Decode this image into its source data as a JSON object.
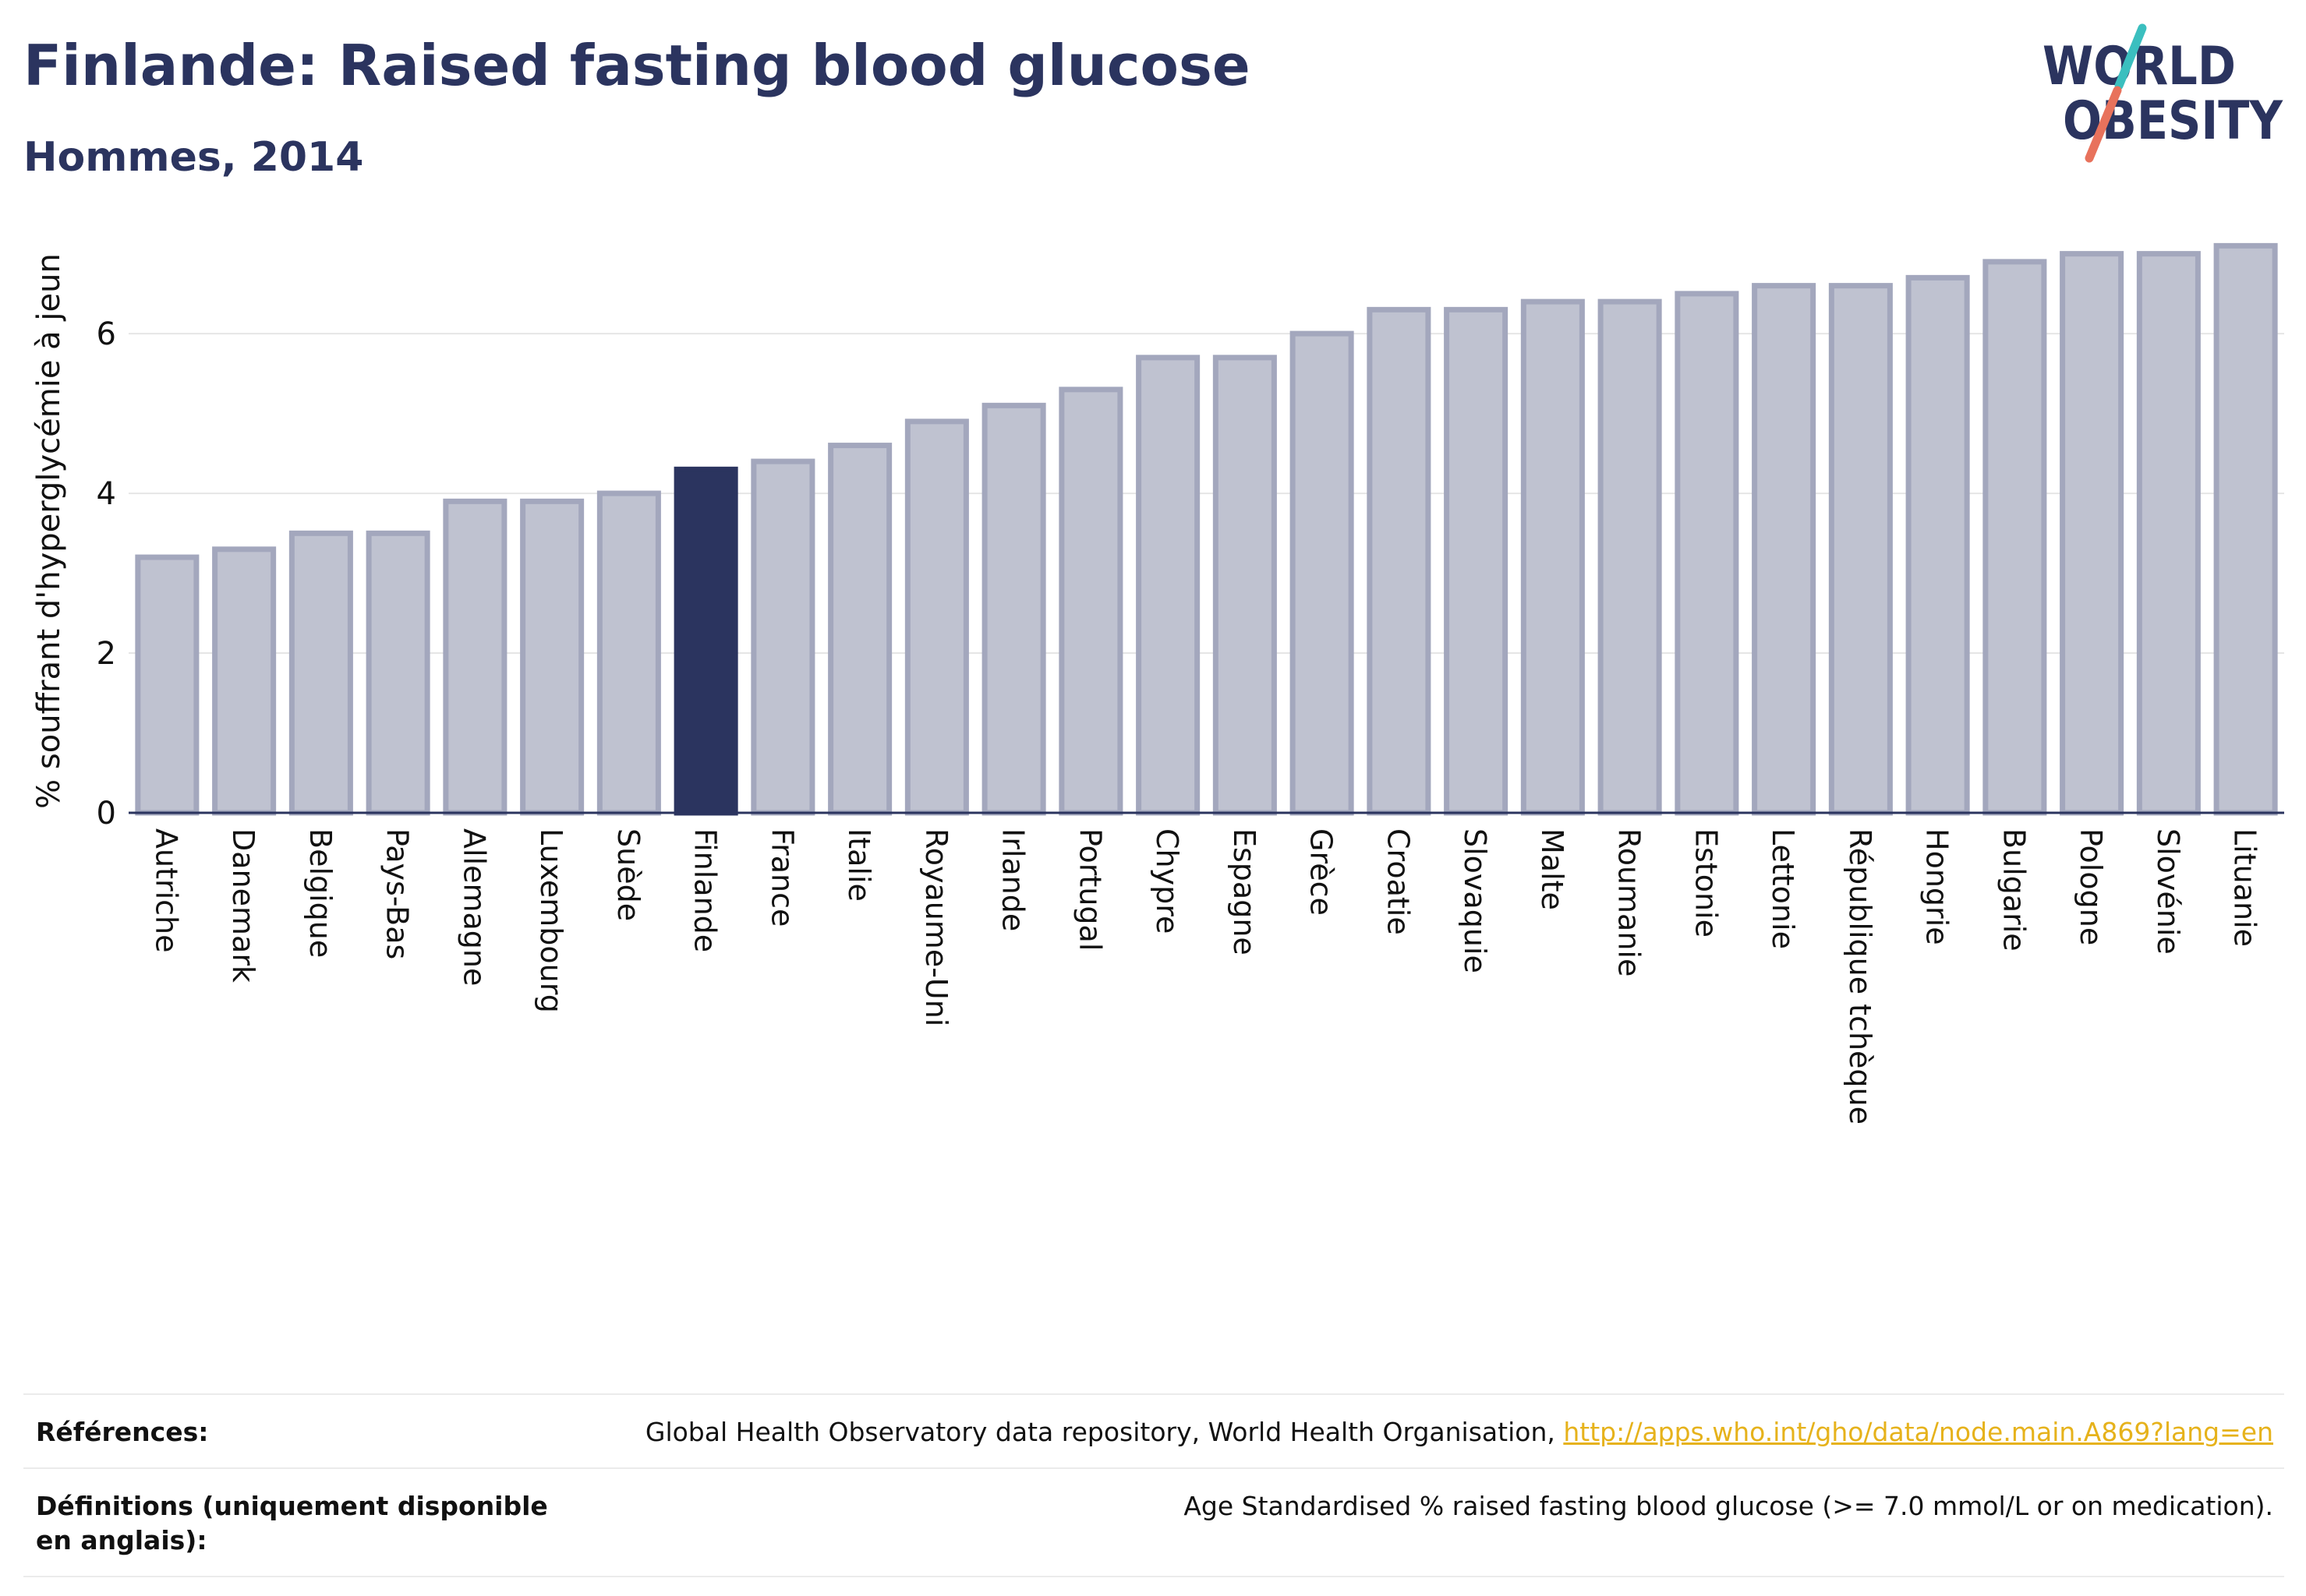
{
  "header": {
    "title": "Finlande: Raised fasting blood glucose",
    "subtitle": "Hommes, 2014"
  },
  "logo": {
    "line1": "WORLD",
    "line2": "OBESITY",
    "colors": {
      "text": "#2b345f",
      "slash_top": "#3bbfbf",
      "slash_bottom": "#e8725c"
    }
  },
  "chart_data": {
    "type": "bar",
    "title": "Finlande: Raised fasting blood glucose",
    "subtitle": "Hommes, 2014",
    "xlabel": "",
    "ylabel": "% souffrant d'hyperglycémie à jeun",
    "ylim": [
      0,
      7.25
    ],
    "yticks": [
      0,
      2,
      4,
      6
    ],
    "grid": true,
    "highlight": "Finlande",
    "colors": {
      "bar": "#bfc2d0",
      "bar_edge": "#a3a7bd",
      "highlight": "#2b345f",
      "axis": "#2b345f",
      "grid": "#e6e6e6"
    },
    "categories": [
      "Autriche",
      "Danemark",
      "Belgique",
      "Pays-Bas",
      "Allemagne",
      "Luxembourg",
      "Suède",
      "Finlande",
      "France",
      "Italie",
      "Royaume-Uni",
      "Irlande",
      "Portugal",
      "Chypre",
      "Espagne",
      "Grèce",
      "Croatie",
      "Slovaquie",
      "Malte",
      "Roumanie",
      "Estonie",
      "Lettonie",
      "République tchèque",
      "Hongrie",
      "Bulgarie",
      "Pologne",
      "Slovénie",
      "Lituanie"
    ],
    "values": [
      3.2,
      3.3,
      3.5,
      3.5,
      3.9,
      3.9,
      4.0,
      4.3,
      4.4,
      4.6,
      4.9,
      5.1,
      5.3,
      5.7,
      5.7,
      6.0,
      6.3,
      6.3,
      6.4,
      6.4,
      6.5,
      6.6,
      6.6,
      6.7,
      6.9,
      7.0,
      7.0,
      7.1
    ]
  },
  "references": {
    "refs_label": "Références:",
    "refs_text": "Global Health Observatory data repository, World Health Organisation, ",
    "refs_link": "http://apps.who.int/gho/data/node.main.A869?lang=en",
    "defs_label": "Définitions (uniquement disponible en anglais):",
    "defs_text": "Age Standardised % raised fasting blood glucose (>= 7.0 mmol/L or on medication)."
  }
}
